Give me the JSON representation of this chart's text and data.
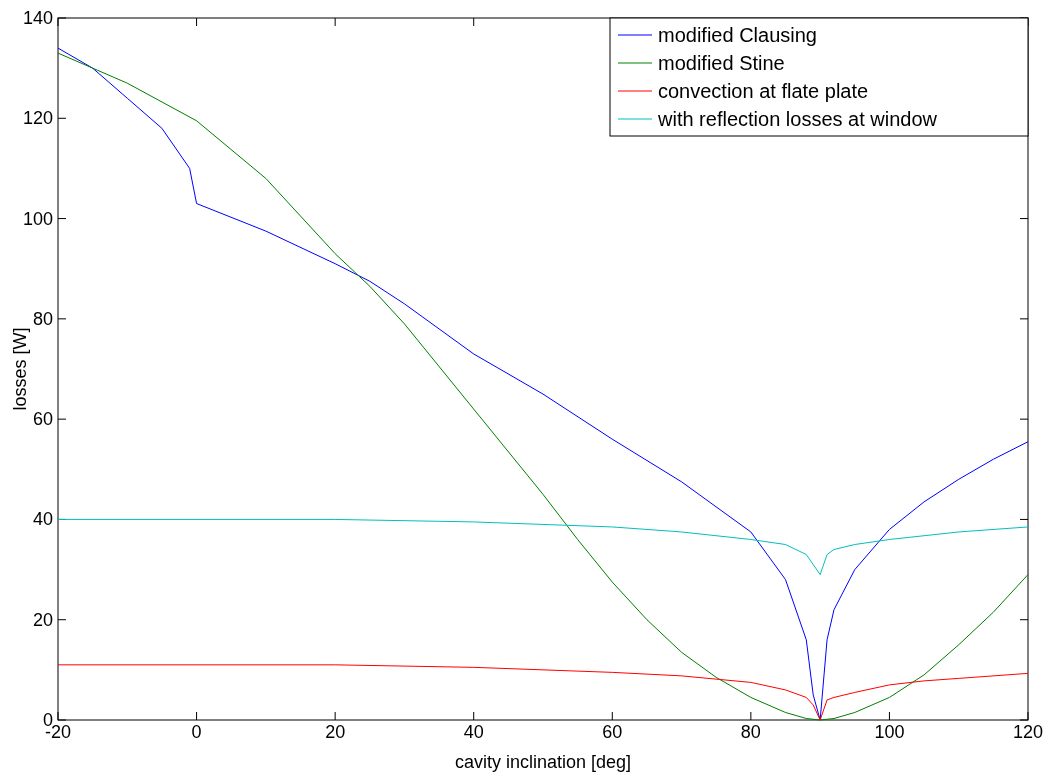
{
  "chart_data": {
    "type": "line",
    "xlabel": "cavity inclination [deg]",
    "ylabel": "losses [W]",
    "xlim": [
      -20,
      120
    ],
    "ylim": [
      0,
      140
    ],
    "xticks": [
      -20,
      0,
      20,
      40,
      60,
      80,
      100,
      120
    ],
    "yticks": [
      0,
      20,
      40,
      60,
      80,
      100,
      120,
      140
    ],
    "legend": "top right",
    "grid": false,
    "marker": "none",
    "line_style": "solid",
    "series": [
      {
        "name": "modified Clausing",
        "color": "#0000ff",
        "x": [
          -20,
          -15,
          -10,
          -5,
          -1,
          0,
          10,
          20,
          25,
          30,
          40,
          50,
          60,
          70,
          80,
          85,
          88,
          89,
          90,
          91,
          92,
          95,
          100,
          105,
          110,
          115,
          120
        ],
        "values": [
          134,
          130,
          124,
          118,
          110,
          103,
          97.5,
          91,
          87.5,
          83,
          73,
          65,
          56,
          47.5,
          37.5,
          28,
          16,
          5,
          0,
          16,
          22,
          30,
          38,
          43.5,
          48,
          52,
          55.5
        ]
      },
      {
        "name": "modified Stine",
        "color": "#008000",
        "x": [
          -20,
          -10,
          0,
          10,
          20,
          25,
          30,
          40,
          50,
          55,
          60,
          65,
          70,
          75,
          80,
          85,
          88,
          90,
          92,
          95,
          100,
          105,
          110,
          115,
          120
        ],
        "values": [
          133,
          127,
          119.5,
          108,
          93,
          86.5,
          79,
          62,
          45,
          36,
          27.5,
          20,
          13.5,
          8.5,
          4.5,
          1.5,
          0.3,
          0,
          0.3,
          1.5,
          4.5,
          9,
          15,
          21.5,
          29
        ]
      },
      {
        "name": "convection at flate plate",
        "color": "#ff0000",
        "x": [
          -20,
          20,
          40,
          60,
          70,
          80,
          85,
          88,
          89,
          90,
          91,
          92,
          95,
          100,
          105,
          110,
          120
        ],
        "values": [
          11,
          11,
          10.5,
          9.5,
          8.8,
          7.5,
          6,
          4.5,
          3,
          0,
          4,
          4.5,
          5.5,
          7,
          7.8,
          8.3,
          9.3
        ]
      },
      {
        "name": "with reflection losses at window",
        "color": "#00bfbf",
        "x": [
          -20,
          20,
          40,
          60,
          70,
          80,
          85,
          88,
          89,
          90,
          91,
          92,
          95,
          100,
          110,
          120
        ],
        "values": [
          40,
          40,
          39.5,
          38.5,
          37.5,
          36,
          35,
          33,
          31,
          29,
          33,
          34,
          35,
          36,
          37.5,
          38.5
        ]
      }
    ]
  }
}
